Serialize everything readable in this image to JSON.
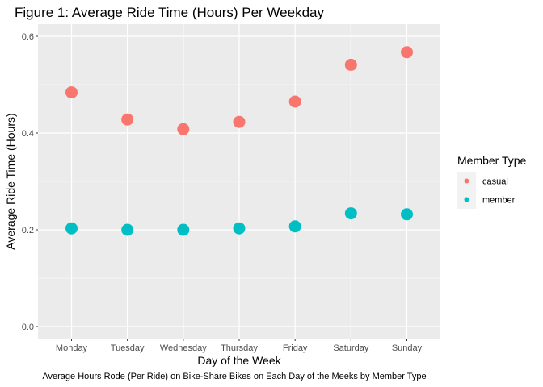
{
  "chart_data": {
    "type": "scatter",
    "title": "Figure 1: Average Ride Time (Hours) Per Weekday",
    "xlabel": "Day of the Week",
    "ylabel": "Average Ride Time (Hours)",
    "caption": "Average Hours Rode (Per Ride) on Bike-Share Bikes on Each Day of the Meeks by Member Type",
    "categories": [
      "Monday",
      "Tuesday",
      "Wednesday",
      "Thursday",
      "Friday",
      "Saturday",
      "Sunday"
    ],
    "series": [
      {
        "name": "casual",
        "color": "#f8766d",
        "values": [
          0.484,
          0.428,
          0.408,
          0.423,
          0.465,
          0.541,
          0.567
        ]
      },
      {
        "name": "member",
        "color": "#00bfc4",
        "values": [
          0.203,
          0.2,
          0.2,
          0.203,
          0.207,
          0.234,
          0.232
        ]
      }
    ],
    "ylim": [
      -0.025,
      0.625
    ],
    "yticks": [
      0.0,
      0.2,
      0.4,
      0.6
    ],
    "ytick_labels": [
      "0.0",
      "0.2",
      "0.4",
      "0.6"
    ],
    "grid": true,
    "panel_background": "#ebebeb",
    "legend": {
      "title": "Member Type",
      "position": "right"
    }
  }
}
